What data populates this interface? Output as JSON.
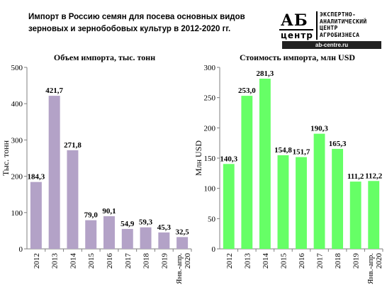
{
  "header": {
    "title": "Импорт в Россию семян для посева основных видов зерновых и зернобобовых культур в 2012-2020 гг."
  },
  "logo": {
    "mark_top": "АБ",
    "mark_bottom": "центр",
    "lines": [
      "ЭКСПЕРТНО-",
      "АНАЛИТИЧЕСКИЙ",
      "ЦЕНТР",
      "АГРОБИЗНЕСА"
    ],
    "site": "ab-centre.ru"
  },
  "chart_data": [
    {
      "type": "bar",
      "title": "Объем импорта, тыс. тонн",
      "ylabel": "Тыс. тонн",
      "xlabel": "",
      "categories": [
        "2012",
        "2013",
        "2014",
        "2015",
        "2016",
        "2017",
        "2018",
        "2019",
        "Янв.-апр. 2020"
      ],
      "values": [
        184.3,
        421.7,
        271.8,
        79.0,
        90.1,
        54.9,
        59.3,
        45.3,
        32.5
      ],
      "data_labels": [
        "184,3",
        "421,7",
        "271,8",
        "79,0",
        "90,1",
        "54,9",
        "59,3",
        "45,3",
        "32,5"
      ],
      "ylim": [
        0,
        500
      ],
      "yticks": [
        0,
        100,
        200,
        300,
        400,
        500
      ],
      "color": "#b3a2c7",
      "grid": false,
      "legend": "none"
    },
    {
      "type": "bar",
      "title": "Стоимость импорта, млн USD",
      "ylabel": "Млн USD",
      "xlabel": "",
      "categories": [
        "2012",
        "2013",
        "2014",
        "2015",
        "2016",
        "2017",
        "2018",
        "2019",
        "Янв.-апр. 2020"
      ],
      "values": [
        140.3,
        253.0,
        281.3,
        154.8,
        151.7,
        190.3,
        165.3,
        111.2,
        112.2
      ],
      "data_labels": [
        "140,3",
        "253,0",
        "281,3",
        "154,8",
        "151,7",
        "190,3",
        "165,3",
        "111,2",
        "112,2"
      ],
      "ylim": [
        0,
        300
      ],
      "yticks": [
        0,
        50,
        100,
        150,
        200,
        250,
        300
      ],
      "color": "#66ff66",
      "grid": false,
      "legend": "none"
    }
  ]
}
